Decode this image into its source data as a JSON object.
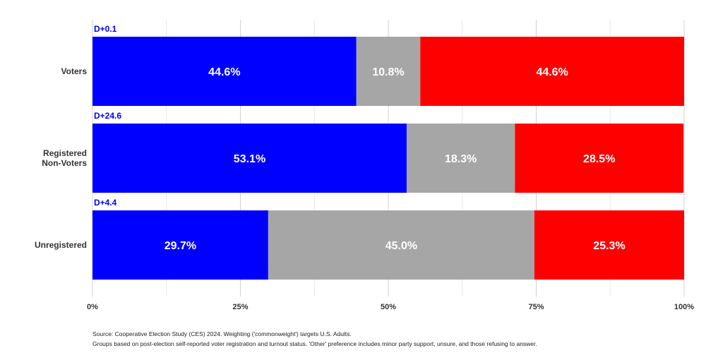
{
  "chart_data": {
    "type": "bar",
    "orientation": "horizontal",
    "stacked": true,
    "categories": [
      "Voters",
      "Registered Non-Voters",
      "Unregistered"
    ],
    "category_lines": [
      [
        "Voters"
      ],
      [
        "Registered",
        "Non-Voters"
      ],
      [
        "Unregistered"
      ]
    ],
    "series": [
      {
        "values": [
          44.6,
          53.1,
          29.7
        ],
        "labels": [
          "44.6%",
          "53.1%",
          "29.7%"
        ],
        "color": "#0000ff"
      },
      {
        "values": [
          10.8,
          18.3,
          45.0
        ],
        "labels": [
          "10.8%",
          "18.3%",
          "45.0%"
        ],
        "color": "#a6a6a6"
      },
      {
        "values": [
          44.6,
          28.5,
          25.3
        ],
        "labels": [
          "44.6%",
          "28.5%",
          "25.3%"
        ],
        "color": "#ff0000"
      }
    ],
    "margins": [
      "D+0.1",
      "D+24.6",
      "D+4.4"
    ],
    "margin_color": "#0000ff",
    "xlim": [
      0,
      100
    ],
    "xticks": [
      0,
      25,
      50,
      75,
      100
    ],
    "xtick_labels": [
      "0%",
      "25%",
      "50%",
      "75%",
      "100%"
    ],
    "grid": true
  },
  "notes": {
    "source": "Source: Cooperative Election Study (CES) 2024. Weighting ('commonweight') targets U.S. Adults.",
    "groups": "Groups based on post-election self-reported voter registration and turnout status. 'Other' preference includes minor party support, unsure, and those refusing to answer."
  }
}
